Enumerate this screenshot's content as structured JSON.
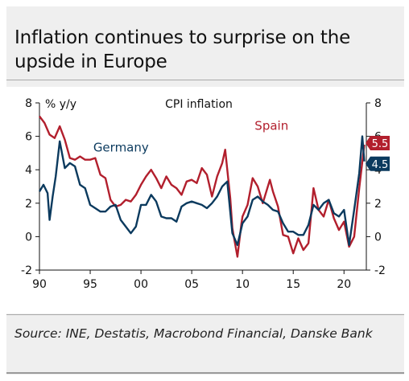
{
  "title": "Inflation continues to surprise on the upside in Europe",
  "source": "Source: INE, Destatis, Macrobond Financial, Danske Bank",
  "chart_data": {
    "type": "line",
    "title": "CPI inflation",
    "ylabel": "% y/y",
    "ylim": [
      -2,
      8
    ],
    "xlim": [
      1990,
      2022.2
    ],
    "y_ticks": [
      "-2",
      "0",
      "2",
      "4",
      "6",
      "8"
    ],
    "x_ticks": [
      "90",
      "95",
      "00",
      "05",
      "10",
      "15",
      "20"
    ],
    "x_tick_years": [
      1990,
      1995,
      2000,
      2005,
      2010,
      2015,
      2020
    ],
    "grid": false,
    "series": [
      {
        "name": "Spain",
        "color": "#b21f2d",
        "end_label": "5.5",
        "points": [
          [
            1990,
            7.2
          ],
          [
            1990.5,
            6.8
          ],
          [
            1991,
            6.1
          ],
          [
            1991.5,
            5.9
          ],
          [
            1992,
            6.6
          ],
          [
            1992.5,
            5.8
          ],
          [
            1993,
            4.7
          ],
          [
            1993.5,
            4.6
          ],
          [
            1994,
            4.8
          ],
          [
            1994.5,
            4.6
          ],
          [
            1995,
            4.6
          ],
          [
            1995.5,
            4.7
          ],
          [
            1996,
            3.7
          ],
          [
            1996.5,
            3.5
          ],
          [
            1997,
            2.2
          ],
          [
            1997.5,
            1.8
          ],
          [
            1998,
            1.9
          ],
          [
            1998.5,
            2.2
          ],
          [
            1999,
            2.1
          ],
          [
            1999.5,
            2.5
          ],
          [
            2000,
            3.1
          ],
          [
            2000.5,
            3.6
          ],
          [
            2001,
            4.0
          ],
          [
            2001.5,
            3.5
          ],
          [
            2002,
            2.9
          ],
          [
            2002.5,
            3.6
          ],
          [
            2003,
            3.1
          ],
          [
            2003.5,
            2.9
          ],
          [
            2004,
            2.5
          ],
          [
            2004.5,
            3.3
          ],
          [
            2005,
            3.4
          ],
          [
            2005.5,
            3.2
          ],
          [
            2006,
            4.1
          ],
          [
            2006.5,
            3.7
          ],
          [
            2007,
            2.4
          ],
          [
            2007.5,
            3.6
          ],
          [
            2008,
            4.4
          ],
          [
            2008.3,
            5.2
          ],
          [
            2008.8,
            2.3
          ],
          [
            2009,
            0.5
          ],
          [
            2009.5,
            -1.2
          ],
          [
            2009.9,
            0.8
          ],
          [
            2010,
            1.2
          ],
          [
            2010.5,
            1.9
          ],
          [
            2011,
            3.5
          ],
          [
            2011.5,
            3.0
          ],
          [
            2012,
            2.0
          ],
          [
            2012.7,
            3.4
          ],
          [
            2013,
            2.7
          ],
          [
            2013.5,
            1.8
          ],
          [
            2014,
            0.1
          ],
          [
            2014.5,
            0.0
          ],
          [
            2015,
            -1.0
          ],
          [
            2015.5,
            -0.1
          ],
          [
            2016,
            -0.8
          ],
          [
            2016.5,
            -0.4
          ],
          [
            2017,
            2.9
          ],
          [
            2017.5,
            1.6
          ],
          [
            2018,
            1.2
          ],
          [
            2018.5,
            2.2
          ],
          [
            2019,
            1.1
          ],
          [
            2019.5,
            0.4
          ],
          [
            2020,
            0.9
          ],
          [
            2020.5,
            -0.6
          ],
          [
            2021,
            0.0
          ],
          [
            2021.5,
            2.9
          ],
          [
            2022,
            5.5
          ]
        ]
      },
      {
        "name": "Germany",
        "color": "#0b3a5e",
        "end_label": "4.5",
        "points": [
          [
            1990,
            2.7
          ],
          [
            1990.4,
            3.1
          ],
          [
            1990.8,
            2.6
          ],
          [
            1991,
            1.0
          ],
          [
            1991.3,
            2.4
          ],
          [
            1991.6,
            3.6
          ],
          [
            1992,
            5.7
          ],
          [
            1992.5,
            4.1
          ],
          [
            1993,
            4.4
          ],
          [
            1993.5,
            4.2
          ],
          [
            1994,
            3.1
          ],
          [
            1994.5,
            2.9
          ],
          [
            1995,
            1.9
          ],
          [
            1995.5,
            1.7
          ],
          [
            1996,
            1.5
          ],
          [
            1996.5,
            1.5
          ],
          [
            1997,
            1.8
          ],
          [
            1997.5,
            1.9
          ],
          [
            1998,
            1.0
          ],
          [
            1998.5,
            0.6
          ],
          [
            1999,
            0.2
          ],
          [
            1999.5,
            0.6
          ],
          [
            2000,
            1.9
          ],
          [
            2000.5,
            1.9
          ],
          [
            2001,
            2.5
          ],
          [
            2001.5,
            2.1
          ],
          [
            2002,
            1.2
          ],
          [
            2002.5,
            1.1
          ],
          [
            2003,
            1.1
          ],
          [
            2003.5,
            0.9
          ],
          [
            2004,
            1.8
          ],
          [
            2004.5,
            2.0
          ],
          [
            2005,
            2.1
          ],
          [
            2005.5,
            2.0
          ],
          [
            2006,
            1.9
          ],
          [
            2006.5,
            1.7
          ],
          [
            2007,
            2.0
          ],
          [
            2007.5,
            2.4
          ],
          [
            2008,
            3.0
          ],
          [
            2008.5,
            3.3
          ],
          [
            2009,
            0.2
          ],
          [
            2009.5,
            -0.5
          ],
          [
            2010,
            0.8
          ],
          [
            2010.5,
            1.2
          ],
          [
            2011,
            2.2
          ],
          [
            2011.5,
            2.4
          ],
          [
            2012,
            2.1
          ],
          [
            2012.5,
            1.9
          ],
          [
            2013,
            1.6
          ],
          [
            2013.5,
            1.5
          ],
          [
            2014,
            0.8
          ],
          [
            2014.5,
            0.3
          ],
          [
            2015,
            0.3
          ],
          [
            2015.5,
            0.1
          ],
          [
            2016,
            0.1
          ],
          [
            2016.5,
            0.7
          ],
          [
            2017,
            1.9
          ],
          [
            2017.5,
            1.6
          ],
          [
            2018,
            2.0
          ],
          [
            2018.5,
            2.2
          ],
          [
            2019,
            1.4
          ],
          [
            2019.5,
            1.2
          ],
          [
            2020,
            1.6
          ],
          [
            2020.5,
            -0.5
          ],
          [
            2021,
            1.6
          ],
          [
            2021.5,
            3.8
          ],
          [
            2021.8,
            6.0
          ],
          [
            2022,
            4.5
          ]
        ]
      }
    ]
  }
}
